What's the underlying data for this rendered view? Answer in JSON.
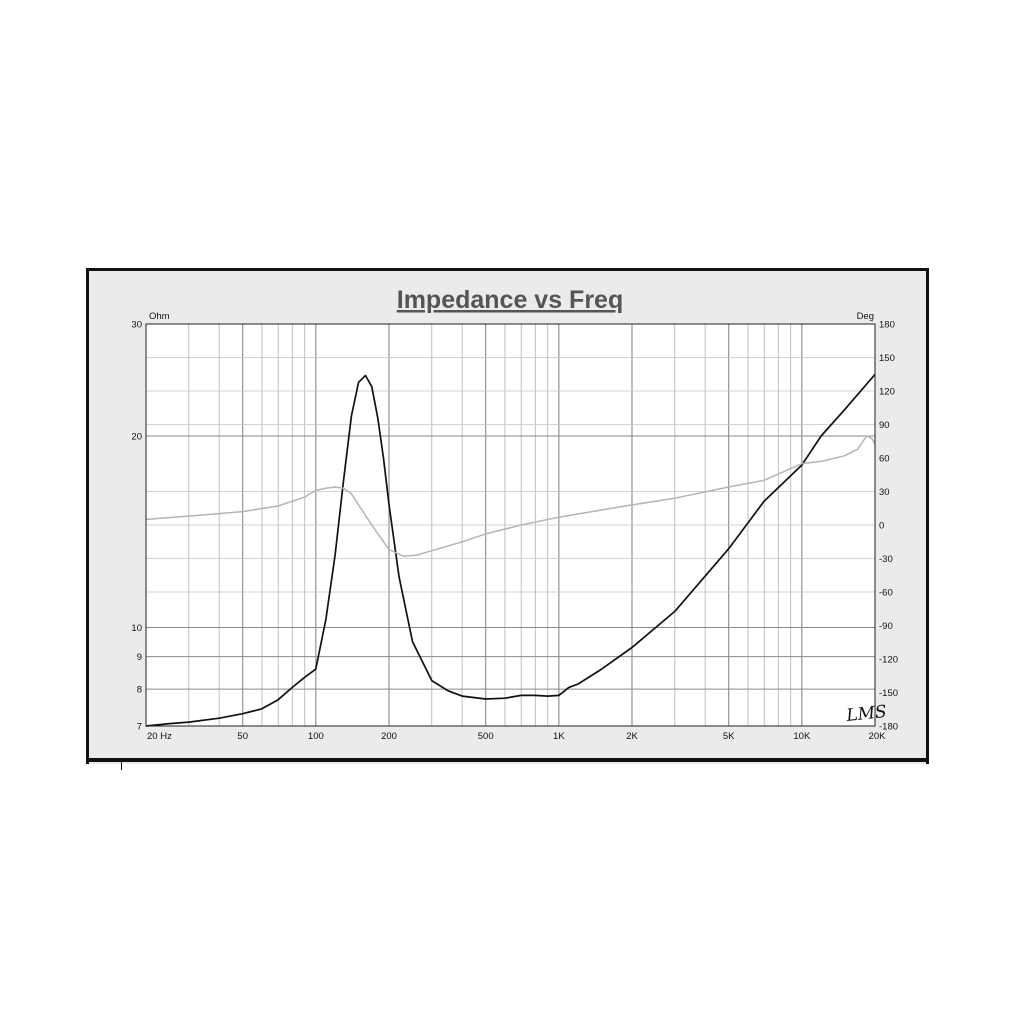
{
  "chart_data": {
    "type": "line",
    "title": "Impedance vs Freq",
    "y_left_unit": "Ohm",
    "y_right_unit": "Deg",
    "x_scale": "log",
    "y_left_scale": "log",
    "xlim": [
      20,
      20000
    ],
    "ylim_left": [
      7,
      30
    ],
    "ylim_right": [
      -180,
      180
    ],
    "x_ticks": [
      {
        "value": 20,
        "label": "20  Hz"
      },
      {
        "value": 50,
        "label": "50"
      },
      {
        "value": 100,
        "label": "100"
      },
      {
        "value": 200,
        "label": "200"
      },
      {
        "value": 500,
        "label": "500"
      },
      {
        "value": 1000,
        "label": "1K"
      },
      {
        "value": 2000,
        "label": "2K"
      },
      {
        "value": 5000,
        "label": "5K"
      },
      {
        "value": 10000,
        "label": "10K"
      },
      {
        "value": 20000,
        "label": "20K"
      }
    ],
    "y_left_ticks": [
      {
        "value": 30,
        "label": "30"
      },
      {
        "value": 20,
        "label": "20"
      },
      {
        "value": 10,
        "label": "10"
      },
      {
        "value": 9,
        "label": "9"
      },
      {
        "value": 8,
        "label": "8"
      },
      {
        "value": 7,
        "label": "7"
      }
    ],
    "y_right_ticks": [
      {
        "value": 180,
        "label": "180"
      },
      {
        "value": 150,
        "label": "150"
      },
      {
        "value": 120,
        "label": "120"
      },
      {
        "value": 90,
        "label": "90"
      },
      {
        "value": 60,
        "label": "60"
      },
      {
        "value": 30,
        "label": "30"
      },
      {
        "value": 0,
        "label": "0"
      },
      {
        "value": -30,
        "label": "-30"
      },
      {
        "value": -60,
        "label": "-60"
      },
      {
        "value": -90,
        "label": "-90"
      },
      {
        "value": -120,
        "label": "-120"
      },
      {
        "value": -150,
        "label": "-150"
      },
      {
        "value": -180,
        "label": "-180"
      }
    ],
    "grid": true,
    "watermark": "LMS",
    "series": [
      {
        "axis": "left",
        "color": "#111111",
        "x": [
          20,
          25,
          30,
          40,
          50,
          60,
          70,
          80,
          90,
          100,
          110,
          120,
          130,
          140,
          150,
          160,
          170,
          180,
          190,
          200,
          220,
          250,
          300,
          350,
          400,
          500,
          600,
          700,
          800,
          900,
          1000,
          1100,
          1200,
          1500,
          2000,
          3000,
          5000,
          7000,
          10000,
          12000,
          15000,
          20000
        ],
        "y": [
          7.0,
          7.06,
          7.1,
          7.2,
          7.32,
          7.45,
          7.7,
          8.05,
          8.35,
          8.6,
          10.3,
          13.0,
          17.0,
          21.5,
          24.3,
          24.9,
          23.9,
          21.3,
          18.4,
          15.6,
          12.0,
          9.5,
          8.25,
          7.95,
          7.8,
          7.72,
          7.74,
          7.82,
          7.82,
          7.8,
          7.82,
          8.05,
          8.15,
          8.6,
          9.3,
          10.6,
          13.3,
          15.8,
          18.0,
          20.0,
          22.0,
          25.0
        ]
      },
      {
        "axis": "right",
        "color": "#b4b4b4",
        "x": [
          20,
          30,
          50,
          70,
          90,
          100,
          110,
          120,
          130,
          140,
          150,
          170,
          200,
          230,
          260,
          300,
          400,
          500,
          700,
          1000,
          2000,
          3000,
          5000,
          7000,
          10000,
          12000,
          15000,
          17000,
          18500,
          19500,
          20000
        ],
        "y": [
          5,
          8,
          12,
          17,
          25,
          31,
          33,
          34,
          33,
          28,
          18,
          0,
          -22,
          -28,
          -27,
          -23,
          -15,
          -8,
          0,
          7,
          18,
          24,
          34,
          40,
          55,
          57,
          62,
          68,
          80,
          77,
          72
        ]
      }
    ]
  }
}
